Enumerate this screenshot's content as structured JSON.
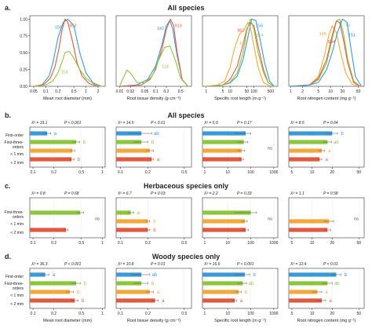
{
  "colors": {
    "c156": "#3a9ad9",
    "c953": "#e05a3f",
    "c114": "#8cc63f",
    "orange": "#f2a93b",
    "axis": "#333333",
    "grid": "#d0d0d0"
  },
  "panel_labels": {
    "a": "a.",
    "b": "b.",
    "c": "c.",
    "d": "d."
  },
  "section_titles": {
    "a": "All species",
    "b": "All species",
    "c": "Herbaceous species only",
    "d": "Woody species only"
  },
  "row_labels": {
    "first": "First-order",
    "three1": "First-three-",
    "three2": "orders",
    "lt1": "< 1 mm",
    "lt2": "< 2 mm"
  },
  "chart_data": [
    {
      "type": "line",
      "panel": "a",
      "title": "",
      "xlabel": "Mean root diameter (mm)",
      "ylabel": "",
      "x_ticks": [
        "0.05",
        "0.1",
        "0.2",
        "0.5",
        "1",
        "2"
      ],
      "y_ticks": [
        "0.00",
        "0.25",
        "0.50",
        "0.75",
        "1.00"
      ],
      "ylim": [
        0,
        1.05
      ],
      "series": [
        {
          "name": "156",
          "color": "#3a9ad9",
          "x": [
            0.05,
            0.08,
            0.12,
            0.15,
            0.2,
            0.27,
            0.35,
            0.5,
            0.7,
            1.0,
            1.5,
            2.5
          ],
          "y": [
            0.0,
            0.02,
            0.15,
            0.35,
            0.72,
            0.95,
            1.0,
            0.9,
            0.5,
            0.2,
            0.05,
            0.0
          ]
        },
        {
          "name": "953",
          "color": "#e05a3f",
          "x": [
            0.05,
            0.09,
            0.13,
            0.17,
            0.21,
            0.25,
            0.3,
            0.35,
            0.45,
            0.6,
            0.8,
            1.2,
            2.0
          ],
          "y": [
            0.0,
            0.03,
            0.12,
            0.3,
            0.55,
            0.82,
            1.0,
            0.96,
            0.7,
            0.35,
            0.15,
            0.04,
            0.0
          ]
        },
        {
          "name": "114",
          "color": "#8cc63f",
          "x": [
            0.05,
            0.1,
            0.15,
            0.2,
            0.25,
            0.3,
            0.38,
            0.5,
            0.7,
            1.0,
            1.6,
            2.5
          ],
          "y": [
            0.0,
            0.02,
            0.08,
            0.2,
            0.35,
            0.5,
            0.52,
            0.42,
            0.25,
            0.12,
            0.03,
            0.0
          ]
        }
      ]
    },
    {
      "type": "line",
      "panel": "a",
      "title": "",
      "xlabel": "Root tissue density (g cm⁻³)",
      "ylabel": "",
      "x_ticks": [
        "0.01",
        "0.02",
        "0.05",
        "0.1",
        "0.2",
        "0.5"
      ],
      "ylim": [
        0,
        1.05
      ],
      "series": [
        {
          "name": "142",
          "color": "#3a9ad9",
          "x": [
            0.01,
            0.03,
            0.06,
            0.1,
            0.15,
            0.2,
            0.25,
            0.3,
            0.4,
            0.55,
            0.8
          ],
          "y": [
            0.0,
            0.02,
            0.1,
            0.3,
            0.62,
            0.9,
            0.98,
            0.85,
            0.45,
            0.1,
            0.0
          ]
        },
        {
          "name": "910",
          "color": "#e05a3f",
          "x": [
            0.01,
            0.04,
            0.07,
            0.1,
            0.15,
            0.2,
            0.26,
            0.32,
            0.4,
            0.55,
            0.8
          ],
          "y": [
            0.0,
            0.02,
            0.1,
            0.25,
            0.55,
            0.85,
            1.0,
            0.9,
            0.5,
            0.1,
            0.0
          ]
        },
        {
          "name": "114",
          "color": "#8cc63f",
          "x": [
            0.01,
            0.012,
            0.016,
            0.02,
            0.03,
            0.05,
            0.08,
            0.12,
            0.18,
            0.25,
            0.35,
            0.5,
            0.8
          ],
          "y": [
            0.0,
            0.1,
            0.24,
            0.2,
            0.06,
            0.05,
            0.15,
            0.38,
            0.58,
            0.6,
            0.4,
            0.12,
            0.0
          ]
        }
      ]
    },
    {
      "type": "line",
      "panel": "a",
      "title": "",
      "xlabel": "Specific root length (m g⁻¹)",
      "ylabel": "",
      "x_ticks": [
        "1",
        "5",
        "10",
        "50",
        "100",
        "500"
      ],
      "ylim": [
        0,
        1.05
      ],
      "series": [
        {
          "name": "963",
          "color": "#e05a3f",
          "x": [
            1,
            5,
            10,
            20,
            35,
            50,
            70,
            100,
            150,
            250,
            400,
            700
          ],
          "y": [
            0.0,
            0.02,
            0.1,
            0.3,
            0.62,
            0.85,
            0.95,
            0.9,
            0.6,
            0.25,
            0.05,
            0.0
          ]
        },
        {
          "name": "156",
          "color": "#3a9ad9",
          "x": [
            1,
            5,
            10,
            20,
            35,
            55,
            80,
            120,
            180,
            280,
            450,
            700
          ],
          "y": [
            0.0,
            0.02,
            0.05,
            0.15,
            0.4,
            0.72,
            1.0,
            0.98,
            0.7,
            0.35,
            0.08,
            0.0
          ]
        },
        {
          "name": "145",
          "color": "#f2a93b",
          "x": [
            1,
            3,
            6,
            10,
            15,
            25,
            40,
            55,
            70,
            100,
            150,
            250,
            500
          ],
          "y": [
            0.0,
            0.02,
            0.08,
            0.28,
            0.55,
            0.78,
            0.85,
            0.95,
            0.88,
            0.6,
            0.28,
            0.06,
            0.0
          ]
        },
        {
          "name": "114",
          "color": "#8cc63f",
          "x": [
            1,
            5,
            10,
            20,
            35,
            50,
            70,
            100,
            150,
            250,
            400,
            700
          ],
          "y": [
            0.0,
            0.02,
            0.06,
            0.2,
            0.5,
            0.82,
            1.0,
            0.85,
            0.5,
            0.2,
            0.05,
            0.0
          ]
        }
      ]
    },
    {
      "type": "line",
      "panel": "a",
      "title": "",
      "xlabel": "Root nitrogen content (mg g⁻¹)",
      "ylabel": "",
      "x_ticks": [
        "1",
        "2",
        "5",
        "10",
        "20",
        "50"
      ],
      "ylim": [
        0,
        1.05
      ],
      "series": [
        {
          "name": "145",
          "color": "#f2a93b",
          "x": [
            1,
            3,
            5,
            7,
            9,
            11,
            14,
            18,
            24,
            35,
            50
          ],
          "y": [
            0.0,
            0.02,
            0.15,
            0.45,
            0.75,
            0.9,
            0.8,
            0.5,
            0.2,
            0.03,
            0.0
          ]
        },
        {
          "name": "79",
          "color": "#8cc63f",
          "x": [
            1,
            3,
            5,
            8,
            11,
            14,
            17,
            21,
            27,
            38,
            55
          ],
          "y": [
            0.0,
            0.02,
            0.1,
            0.35,
            0.7,
            0.97,
            1.0,
            0.8,
            0.4,
            0.08,
            0.0
          ]
        },
        {
          "name": "844",
          "color": "#e05a3f",
          "x": [
            1,
            3,
            5,
            8,
            11,
            14,
            17,
            21,
            27,
            38,
            55
          ],
          "y": [
            0.0,
            0.02,
            0.12,
            0.4,
            0.75,
            0.97,
            0.95,
            0.7,
            0.35,
            0.06,
            0.0
          ]
        },
        {
          "name": "151",
          "color": "#3a9ad9",
          "x": [
            1,
            3,
            5,
            8,
            11,
            15,
            20,
            26,
            32,
            42,
            60
          ],
          "y": [
            0.0,
            0.02,
            0.06,
            0.25,
            0.5,
            0.8,
            1.0,
            0.95,
            0.6,
            0.15,
            0.0
          ]
        }
      ]
    },
    {
      "type": "bar",
      "panel": "b",
      "stat": "X² = 19.1",
      "pval": "P < 0.001",
      "x_ticks": [
        "0.1",
        "0.2",
        "0.5",
        "1"
      ],
      "xlabel": "",
      "rows": [
        {
          "value": 0.16,
          "err": 0.02,
          "letter": "a",
          "color": "#3a9ad9"
        },
        {
          "value": 0.42,
          "err": 0.05,
          "letter": "b",
          "color": "#8cc63f"
        },
        {
          "value": 0.37,
          "err": 0.03,
          "letter": "",
          "color": "#f2a93b"
        },
        {
          "value": 0.36,
          "err": 0.03,
          "letter": "b",
          "color": "#e05a3f"
        }
      ]
    },
    {
      "type": "bar",
      "panel": "b",
      "stat": "X² = 14.5",
      "pval": "P < 0.01",
      "x_ticks": [
        "0.1",
        "0.2",
        "0.5"
      ],
      "xlabel": "",
      "rows": [
        {
          "value": 0.17,
          "err": 0.05,
          "letter": "ab",
          "color": "#3a9ad9"
        },
        {
          "value": 0.17,
          "err": 0.03,
          "letter": "b",
          "color": "#8cc63f"
        },
        {
          "value": 0.21,
          "err": 0.02,
          "letter": "",
          "color": "#f2a93b"
        },
        {
          "value": 0.22,
          "err": 0.01,
          "letter": "a",
          "color": "#e05a3f"
        }
      ]
    },
    {
      "type": "bar",
      "panel": "b",
      "stat": "X² = 5.0",
      "pval": "P = 0.17",
      "x_ticks": [
        "1",
        "10",
        "100",
        "1000"
      ],
      "xlabel": "",
      "ns": "ns",
      "rows": [
        {
          "value": 60,
          "err": 40,
          "letter": "",
          "color": "#3a9ad9"
        },
        {
          "value": 50,
          "err": 25,
          "letter": "",
          "color": "#8cc63f"
        },
        {
          "value": 40,
          "err": 15,
          "letter": "",
          "color": "#f2a93b"
        },
        {
          "value": 40,
          "err": 8,
          "letter": "",
          "color": "#e05a3f"
        }
      ]
    },
    {
      "type": "bar",
      "panel": "b",
      "stat": "X² = 8.5",
      "pval": "P = 0.04",
      "x_ticks": [
        "5",
        "10",
        "20",
        "50"
      ],
      "xlabel": "",
      "rows": [
        {
          "value": 20,
          "err": 4,
          "letter": "b",
          "color": "#3a9ad9"
        },
        {
          "value": 17,
          "err": 2.5,
          "letter": "ab",
          "color": "#8cc63f"
        },
        {
          "value": 14,
          "err": 1.5,
          "letter": "a",
          "color": "#f2a93b"
        },
        {
          "value": 13,
          "err": 1,
          "letter": "a",
          "color": "#e05a3f"
        }
      ]
    },
    {
      "type": "bar",
      "panel": "c",
      "stat": "X² = 0.8",
      "pval": "P = 0.68",
      "x_ticks": [
        "0.1",
        "0.2",
        "0.5",
        "1"
      ],
      "xlabel": "",
      "ns": "ns",
      "rows": [
        {
          "value": null,
          "err": null,
          "letter": "",
          "color": "#3a9ad9"
        },
        {
          "value": 0.48,
          "err": 0.06,
          "letter": "",
          "color": "#8cc63f"
        },
        {
          "value": null,
          "err": null,
          "letter": "",
          "color": "#f2a93b"
        },
        {
          "value": 0.3,
          "err": 0.02,
          "letter": "",
          "color": "#e05a3f"
        }
      ]
    },
    {
      "type": "bar",
      "panel": "c",
      "stat": "X² = 6.7",
      "pval": "P = 0.03",
      "x_ticks": [
        "0.1",
        "0.2",
        "0.5"
      ],
      "xlabel": "",
      "rows": [
        {
          "value": null,
          "err": null,
          "letter": "",
          "color": "#3a9ad9"
        },
        {
          "value": 0.13,
          "err": 0.01,
          "letter": "a",
          "color": "#8cc63f"
        },
        {
          "value": 0.2,
          "err": 0.01,
          "letter": "b",
          "color": "#f2a93b"
        },
        {
          "value": 0.2,
          "err": 0.01,
          "letter": "b",
          "color": "#e05a3f"
        }
      ]
    },
    {
      "type": "bar",
      "panel": "c",
      "stat": "X² = 2.2",
      "pval": "P = 0.33",
      "x_ticks": [
        "1",
        "10",
        "100",
        "1000"
      ],
      "xlabel": "",
      "ns": "ns",
      "rows": [
        {
          "value": null,
          "err": null,
          "letter": "",
          "color": "#3a9ad9"
        },
        {
          "value": 100,
          "err": 80,
          "letter": "",
          "color": "#8cc63f"
        },
        {
          "value": 55,
          "err": 15,
          "letter": "",
          "color": "#f2a93b"
        },
        {
          "value": 60,
          "err": 20,
          "letter": "",
          "color": "#e05a3f"
        }
      ]
    },
    {
      "type": "bar",
      "panel": "c",
      "stat": "X² = 1.1",
      "pval": "P = 0.58",
      "x_ticks": [
        "5",
        "10",
        "20",
        "50"
      ],
      "xlabel": "",
      "ns": "ns",
      "rows": [
        {
          "value": null,
          "err": null,
          "letter": "",
          "color": "#3a9ad9"
        },
        {
          "value": null,
          "err": null,
          "letter": "",
          "color": "#8cc63f"
        },
        {
          "value": 18,
          "err": 3,
          "letter": "",
          "color": "#f2a93b"
        },
        {
          "value": 17,
          "err": 2,
          "letter": "",
          "color": "#e05a3f"
        }
      ]
    },
    {
      "type": "bar",
      "panel": "d",
      "stat": "X² = 36.3",
      "pval": "P < 0.001",
      "x_ticks": [
        "0.1",
        "0.2",
        "0.5",
        "1"
      ],
      "xlabel": "Mean root diameter (mm)",
      "rows": [
        {
          "value": 0.15,
          "err": 0.02,
          "letter": "a",
          "color": "#3a9ad9"
        },
        {
          "value": 0.42,
          "err": 0.06,
          "letter": "b",
          "color": "#8cc63f"
        },
        {
          "value": 0.34,
          "err": 0.04,
          "letter": "b",
          "color": "#f2a93b"
        },
        {
          "value": 0.4,
          "err": 0.05,
          "letter": "b",
          "color": "#e05a3f"
        }
      ]
    },
    {
      "type": "bar",
      "panel": "d",
      "stat": "X² = 10.8",
      "pval": "P = 0.01",
      "x_ticks": [
        "0.1",
        "0.2",
        "0.5"
      ],
      "xlabel": "Root tissue density (g cm⁻³)",
      "rows": [
        {
          "value": 0.17,
          "err": 0.04,
          "letter": "ab",
          "color": "#3a9ad9"
        },
        {
          "value": 0.17,
          "err": 0.03,
          "letter": "b",
          "color": "#8cc63f"
        },
        {
          "value": 0.21,
          "err": 0.02,
          "letter": "a",
          "color": "#f2a93b"
        },
        {
          "value": 0.24,
          "err": 0.02,
          "letter": "a",
          "color": "#e05a3f"
        }
      ]
    },
    {
      "type": "bar",
      "panel": "d",
      "stat": "X² = 16.6",
      "pval": "P < 0.001",
      "x_ticks": [
        "1",
        "10",
        "100",
        "1000"
      ],
      "xlabel": "Specific root length (m g⁻¹)",
      "rows": [
        {
          "value": 55,
          "err": 35,
          "letter": "b",
          "color": "#3a9ad9"
        },
        {
          "value": 45,
          "err": 20,
          "letter": "ab",
          "color": "#8cc63f"
        },
        {
          "value": 30,
          "err": 8,
          "letter": "b",
          "color": "#f2a93b"
        },
        {
          "value": 20,
          "err": 4,
          "letter": "a",
          "color": "#e05a3f"
        }
      ]
    },
    {
      "type": "bar",
      "panel": "d",
      "stat": "X² = 12.4",
      "pval": "P < 0.01",
      "x_ticks": [
        "5",
        "10",
        "20",
        "50"
      ],
      "xlabel": "Root nitrogen content (mg g⁻¹)",
      "rows": [
        {
          "value": 23,
          "err": 4,
          "letter": "b",
          "color": "#3a9ad9"
        },
        {
          "value": 17,
          "err": 3,
          "letter": "ab",
          "color": "#8cc63f"
        },
        {
          "value": 12,
          "err": 2,
          "letter": "a",
          "color": "#f2a93b"
        },
        {
          "value": 14,
          "err": 2,
          "letter": "a",
          "color": "#e05a3f"
        }
      ]
    }
  ]
}
